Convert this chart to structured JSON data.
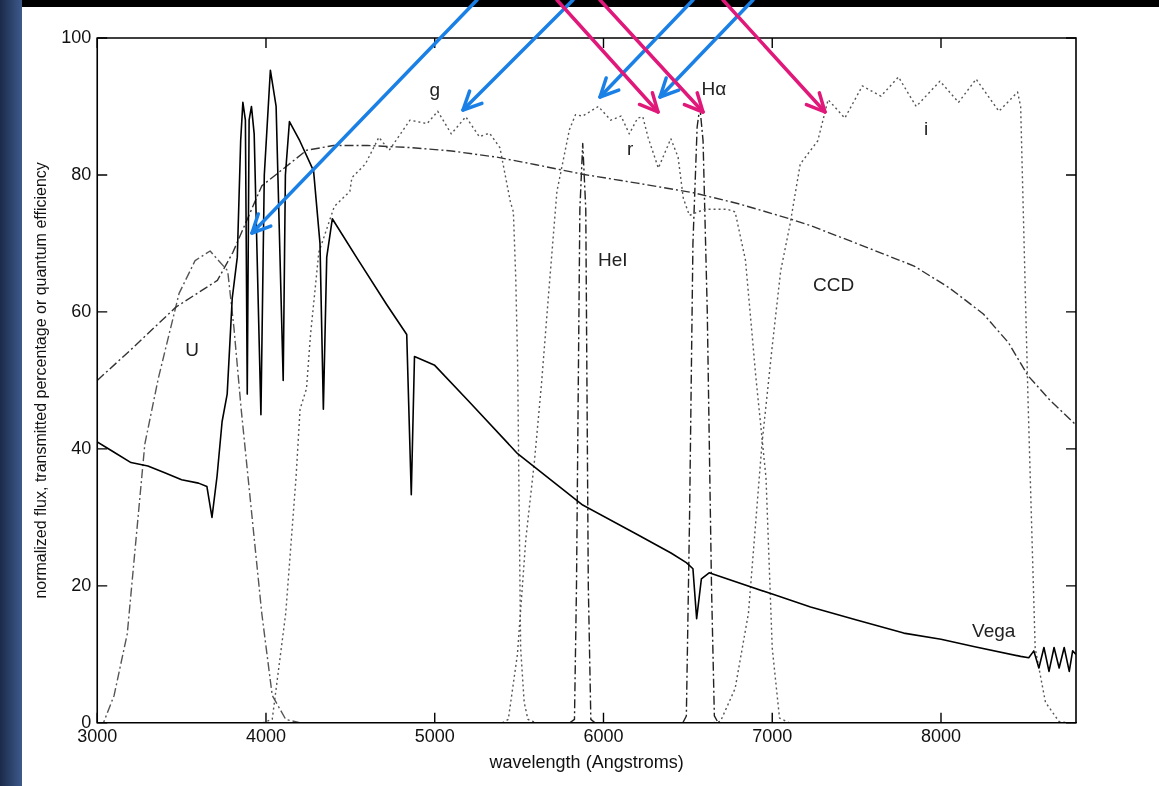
{
  "chart_data": {
    "type": "line",
    "xlabel": "wavelength (Angstroms)",
    "ylabel": "normalized flux, transmitted percentage or quantum efficiency",
    "xlim": [
      3000,
      8800
    ],
    "xticks": [
      3000,
      4000,
      5000,
      6000,
      7000,
      8000
    ],
    "ylim": [
      0,
      100
    ],
    "yticks": [
      0,
      20,
      40,
      60,
      80,
      100
    ],
    "grid": false,
    "legend": false,
    "series": [
      {
        "name": "Vega",
        "color": "#000000",
        "line_style": "solid",
        "x": [
          3000,
          3100,
          3200,
          3300,
          3400,
          3500,
          3600,
          3650,
          3680,
          3710,
          3740,
          3770,
          3800,
          3830,
          3850,
          3863,
          3878,
          3889,
          3900,
          3914,
          3930,
          3970,
          3990,
          4026,
          4060,
          4102,
          4115,
          4139,
          4200,
          4282,
          4320,
          4340,
          4360,
          4393,
          4546,
          4712,
          4834,
          4861,
          4880,
          5000,
          5200,
          5491,
          5877,
          6200,
          6400,
          6491,
          6530,
          6552,
          6580,
          6626,
          7000,
          7227,
          7500,
          7779,
          8000,
          8200,
          8472,
          8520,
          8550,
          8580,
          8610,
          8640,
          8670,
          8700,
          8730,
          8760,
          8780,
          8800
        ],
        "values": [
          41,
          39.5,
          38,
          37.5,
          36.5,
          35.5,
          35,
          34.5,
          30,
          36,
          44,
          48,
          62,
          68,
          85,
          90.6,
          88,
          48,
          88,
          90,
          86,
          45,
          80,
          95.3,
          90,
          50,
          80,
          87.8,
          85,
          80.6,
          70,
          45.8,
          68,
          73.6,
          67.6,
          61.2,
          56.7,
          33.3,
          53.5,
          52.2,
          47,
          39.3,
          31.8,
          27.5,
          24.8,
          23.4,
          22.5,
          15.2,
          21,
          21.9,
          18.8,
          16.9,
          15,
          13.1,
          12.2,
          11.1,
          9.7,
          9.5,
          10.5,
          8,
          11,
          7.5,
          11,
          8,
          11,
          7.5,
          10.5,
          10
        ]
      },
      {
        "name": "CCD",
        "color": "#333333",
        "line_style": "dashed",
        "x": [
          3000,
          3200,
          3466,
          3712,
          3804,
          3975,
          4240,
          4400,
          4600,
          4853,
          5100,
          5368,
          5600,
          5877,
          6200,
          6534,
          6800,
          7104,
          7227,
          7500,
          7841,
          8050,
          8251,
          8400,
          8515,
          8650,
          8800
        ],
        "values": [
          50,
          54.5,
          60.7,
          64.6,
          68.7,
          78.4,
          83.6,
          84.3,
          84.3,
          84,
          83.5,
          82.6,
          81.5,
          80.1,
          78.8,
          77.4,
          75.8,
          73.6,
          72.6,
          70,
          66.7,
          63.5,
          59.7,
          55.5,
          50.7,
          47,
          43.5
        ]
      },
      {
        "name": "U",
        "color": "#555555",
        "line_style": "dashed",
        "x": [
          3000,
          3037,
          3100,
          3178,
          3282,
          3362,
          3485,
          3580,
          3669,
          3773,
          3810,
          3853,
          3914,
          3975,
          4037,
          4117,
          4200
        ],
        "values": [
          0,
          0,
          4,
          13,
          40.7,
          50.3,
          62.7,
          67.5,
          68.9,
          66,
          57.7,
          45.8,
          30.9,
          16,
          4,
          0.5,
          0
        ]
      },
      {
        "name": "g",
        "color": "#555555",
        "line_style": "dotted",
        "x": [
          3980,
          4037,
          4117,
          4178,
          4202,
          4240,
          4264,
          4313,
          4405,
          4497,
          4509,
          4589,
          4669,
          4730,
          4853,
          4955,
          5018,
          5098,
          5184,
          5264,
          5325,
          5386,
          5448,
          5466,
          5480,
          5491,
          5509,
          5530,
          5552,
          5600
        ],
        "values": [
          0,
          0.5,
          16,
          35.8,
          45.8,
          48.8,
          56.7,
          68.7,
          75.4,
          77.6,
          79.6,
          81.6,
          85.5,
          83.6,
          88,
          87.5,
          89.3,
          86,
          88.5,
          85.6,
          86.1,
          84,
          76.1,
          74.6,
          65,
          52.7,
          10.9,
          3,
          0.5,
          0
        ]
      },
      {
        "name": "HeI",
        "color": "#222222",
        "line_style": "dashed",
        "x": [
          5800,
          5828,
          5840,
          5860,
          5877,
          5895,
          5910,
          5925,
          5950
        ],
        "values": [
          0,
          0.5,
          20,
          75,
          84.6,
          75,
          20,
          0.5,
          0
        ]
      },
      {
        "name": "r",
        "color": "#555555",
        "line_style": "dotted",
        "x": [
          5400,
          5436,
          5490,
          5540,
          5590,
          5632,
          5675,
          5724,
          5798,
          5834,
          5877,
          5969,
          6043,
          6104,
          6153,
          6202,
          6233,
          6264,
          6325,
          6399,
          6442,
          6473,
          6509,
          6600,
          6733,
          6780,
          6841,
          6877,
          6902,
          6963,
          7000,
          7043,
          7100
        ],
        "values": [
          0,
          0.5,
          10,
          26.9,
          38,
          49.3,
          62.7,
          77.6,
          86.6,
          88.8,
          88.6,
          90,
          88,
          88.6,
          86,
          88.3,
          88.5,
          85.5,
          81,
          85.3,
          82.6,
          76.6,
          74.1,
          75,
          75,
          74.6,
          67.6,
          57.7,
          50.7,
          35.8,
          10.9,
          0.7,
          0
        ]
      },
      {
        "name": "Hα",
        "color": "#222222",
        "line_style": "dashed",
        "x": [
          6470,
          6491,
          6510,
          6530,
          6555,
          6571,
          6590,
          6615,
          6640,
          6657,
          6680
        ],
        "values": [
          0,
          1,
          30,
          70,
          87,
          90,
          85,
          60,
          20,
          1,
          0
        ]
      },
      {
        "name": "i",
        "color": "#555555",
        "line_style": "dotted",
        "x": [
          6650,
          6693,
          6780,
          6859,
          6939,
          7000,
          7050,
          7104,
          7166,
          7270,
          7331,
          7430,
          7534,
          7644,
          7748,
          7853,
          7994,
          8104,
          8208,
          8343,
          8454,
          8472,
          8515,
          8558,
          8619,
          8699,
          8750
        ],
        "values": [
          0,
          0.2,
          5,
          16,
          40.7,
          55,
          66,
          72.6,
          81.6,
          85,
          91,
          88.3,
          93,
          91.5,
          94.3,
          90,
          93.7,
          90.6,
          94,
          89.3,
          92.1,
          90,
          47.8,
          10.9,
          3,
          0.2,
          0
        ]
      }
    ]
  }
}
